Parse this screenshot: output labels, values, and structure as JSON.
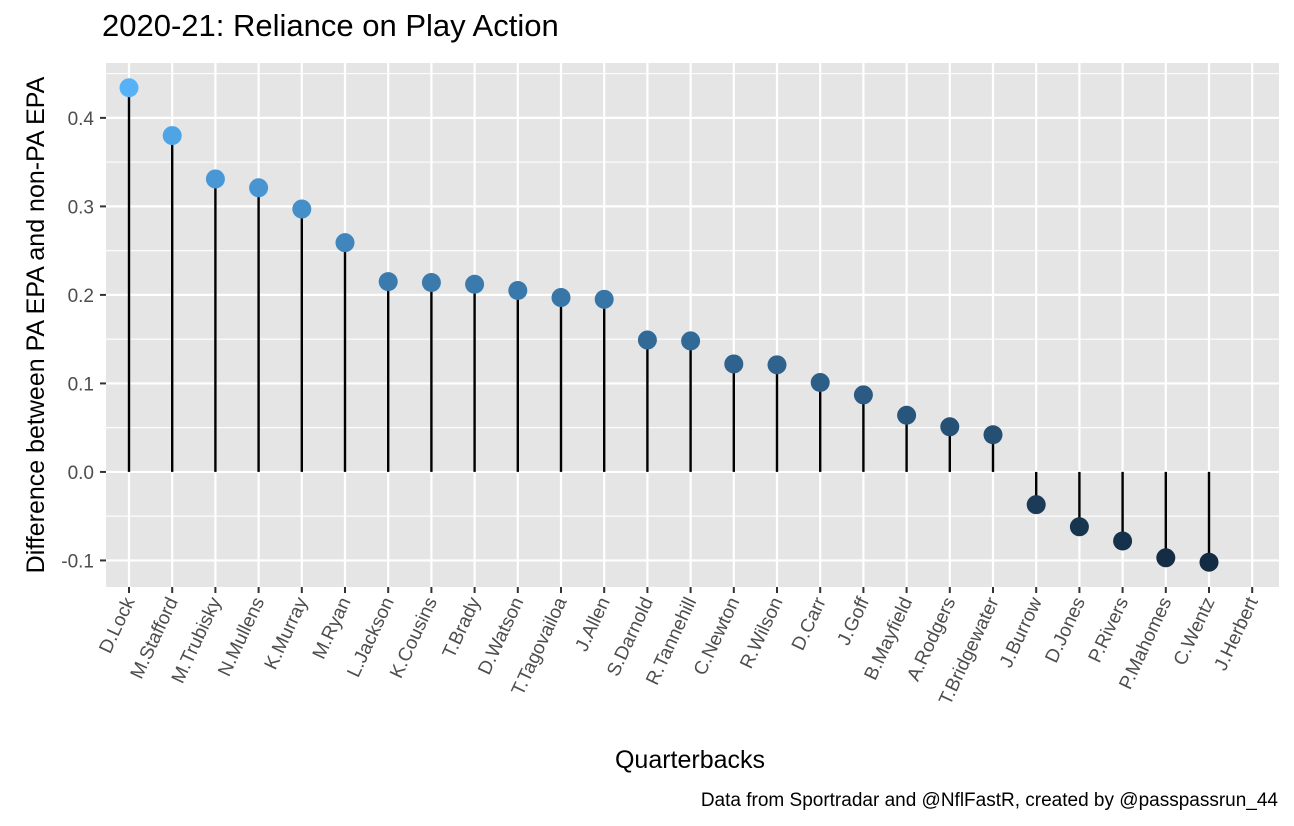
{
  "chart_data": {
    "type": "lollipop",
    "title": "2020-21: Reliance on Play Action",
    "xlabel": "Quarterbacks",
    "ylabel": "Difference between PA EPA and non-PA EPA",
    "caption": "Data from Sportradar and @NflFastR, created by @passpassrun_44",
    "categories": [
      "D.Lock",
      "M.Stafford",
      "M.Trubisky",
      "N.Mullens",
      "K.Murray",
      "M.Ryan",
      "L.Jackson",
      "K.Cousins",
      "T.Brady",
      "D.Watson",
      "T.Tagovailoa",
      "J.Allen",
      "S.Darnold",
      "R.Tannehill",
      "C.Newton",
      "R.Wilson",
      "D.Carr",
      "J.Goff",
      "B.Mayfield",
      "A.Rodgers",
      "T.Bridgewater",
      "J.Burrow",
      "D.Jones",
      "P.Rivers",
      "P.Mahomes",
      "C.Wentz",
      "J.Herbert"
    ],
    "values": [
      0.434,
      0.38,
      0.331,
      0.321,
      0.297,
      0.259,
      0.215,
      0.214,
      0.212,
      0.205,
      0.197,
      0.195,
      0.149,
      0.148,
      0.122,
      0.121,
      0.101,
      0.087,
      0.064,
      0.051,
      0.042,
      -0.037,
      -0.062,
      -0.078,
      -0.097,
      -0.102,
      null
    ],
    "yticks": [
      -0.1,
      0.0,
      0.1,
      0.2,
      0.3,
      0.4
    ],
    "ytick_labels": [
      "-0.1",
      "0.0",
      "0.1",
      "0.2",
      "0.3",
      "0.4"
    ],
    "ylim": [
      -0.13,
      0.462
    ],
    "grid": true,
    "panel_background": "#e5e5e5",
    "grid_color": "#ffffff",
    "stem_color": "#000000",
    "color_scale": {
      "low": "#132b43",
      "high": "#56b1f7"
    }
  }
}
